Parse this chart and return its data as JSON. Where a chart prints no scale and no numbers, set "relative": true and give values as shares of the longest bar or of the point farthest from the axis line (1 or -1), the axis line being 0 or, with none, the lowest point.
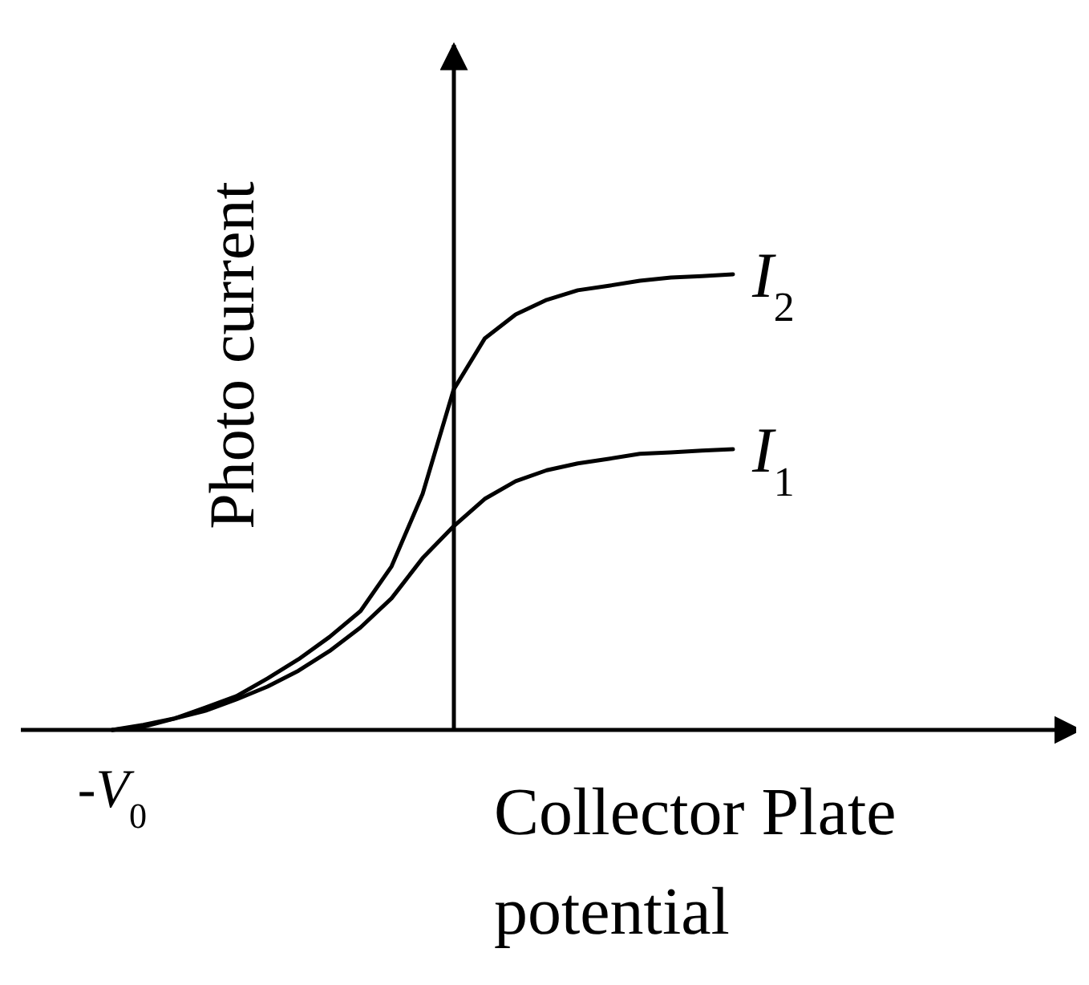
{
  "chart_data": {
    "type": "line",
    "relative": true,
    "xlabel": "Collector Plate potential",
    "ylabel": "Photo current",
    "annotations": [
      "-V$_{0}$"
    ],
    "legend": false,
    "marker": "none",
    "line_style": "solid",
    "categories": [
      null,
      null,
      null,
      null,
      null,
      null,
      null,
      null,
      null,
      null,
      null,
      null,
      null,
      null,
      null,
      null,
      null,
      null,
      null,
      null,
      null
    ],
    "series": [
      {
        "name": "I$_{2}$",
        "color": "#000000",
        "values": [
          0,
          0.007,
          0.025,
          0.049,
          0.074,
          0.113,
          0.155,
          0.204,
          0.261,
          0.359,
          0.518,
          0.747,
          0.859,
          0.912,
          0.944,
          0.965,
          0.975,
          0.986,
          0.993,
          0.996,
          1
        ]
      },
      {
        "name": "I$_{1}$",
        "color": "#000000",
        "values": [
          0,
          0.011,
          0.025,
          0.042,
          0.067,
          0.095,
          0.13,
          0.173,
          0.225,
          0.289,
          0.377,
          0.447,
          0.507,
          0.546,
          0.57,
          0.585,
          0.595,
          0.606,
          0.609,
          0.613,
          0.616
        ]
      }
    ]
  }
}
